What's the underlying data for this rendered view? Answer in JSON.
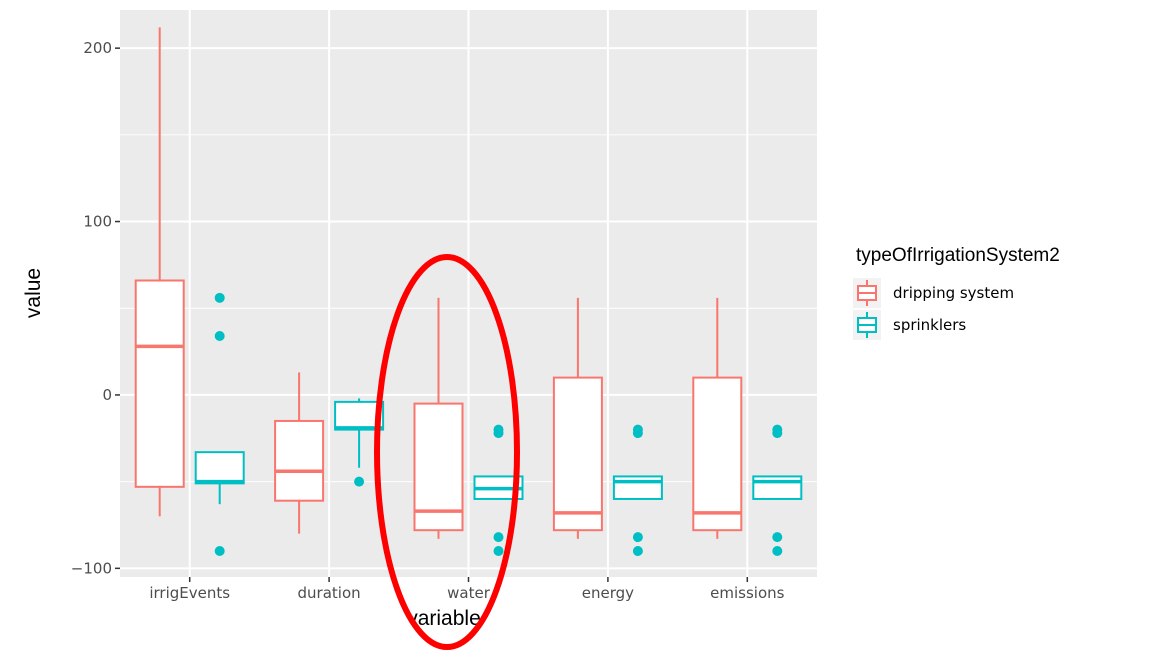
{
  "chart_data": {
    "type": "boxplot",
    "xlabel": "variable",
    "ylabel": "value",
    "ylim": [
      -105,
      222
    ],
    "yticks": [
      -100,
      0,
      100,
      200
    ],
    "ytick_labels": [
      "−100",
      "0",
      "100",
      "200"
    ],
    "categories": [
      "irrigEvents",
      "duration",
      "water",
      "energy",
      "emissions"
    ],
    "grid": true,
    "legend": {
      "title": "typeOfIrrigationSystem2",
      "placement": "right",
      "entries": [
        "dripping system",
        "sprinklers"
      ]
    },
    "series": [
      {
        "name": "dripping system",
        "color": "#F8766D",
        "boxes": [
          {
            "category": "irrigEvents",
            "min": -70,
            "q1": -53,
            "median": 28,
            "q3": 66,
            "max": 212,
            "outliers": []
          },
          {
            "category": "duration",
            "min": -80,
            "q1": -61,
            "median": -44,
            "q3": -15,
            "max": 13,
            "outliers": []
          },
          {
            "category": "water",
            "min": -83,
            "q1": -78,
            "median": -67,
            "q3": -5,
            "max": 56,
            "outliers": []
          },
          {
            "category": "energy",
            "min": -83,
            "q1": -78,
            "median": -68,
            "q3": 10,
            "max": 56,
            "outliers": []
          },
          {
            "category": "emissions",
            "min": -83,
            "q1": -78,
            "median": -68,
            "q3": 10,
            "max": 56,
            "outliers": []
          }
        ]
      },
      {
        "name": "sprinklers",
        "color": "#00BFC4",
        "boxes": [
          {
            "category": "irrigEvents",
            "min": -63,
            "q1": -51,
            "median": -50,
            "q3": -33,
            "max": -33,
            "outliers": [
              56,
              34,
              -90
            ]
          },
          {
            "category": "duration",
            "min": -42,
            "q1": -20,
            "median": -19,
            "q3": -4,
            "max": -2,
            "outliers": [
              -50
            ]
          },
          {
            "category": "water",
            "min": -60,
            "q1": -60,
            "median": -54,
            "q3": -47,
            "max": -47,
            "outliers": [
              -20,
              -22,
              -82,
              -90
            ]
          },
          {
            "category": "energy",
            "min": -60,
            "q1": -60,
            "median": -50,
            "q3": -47,
            "max": -47,
            "outliers": [
              -20,
              -22,
              -82,
              -90
            ]
          },
          {
            "category": "emissions",
            "min": -60,
            "q1": -60,
            "median": -50,
            "q3": -47,
            "max": -47,
            "outliers": [
              -20,
              -22,
              -82,
              -90
            ]
          }
        ]
      }
    ],
    "annotation": {
      "shape": "ellipse",
      "target": "water",
      "color": "#ff0000"
    }
  }
}
